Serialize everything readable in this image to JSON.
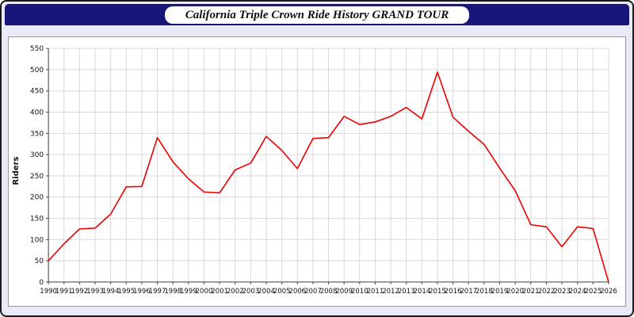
{
  "title": "California Triple Crown Ride History GRAND TOUR",
  "colors": {
    "header_bg": "#17177a",
    "page_bg": "#e9e9f7",
    "line": "#ee0000",
    "grid": "#d9d9d9"
  },
  "chart_data": {
    "type": "line",
    "title": "California Triple Crown Ride History GRAND TOUR",
    "xlabel": "",
    "ylabel": "Riders",
    "ylim": [
      0,
      550
    ],
    "ytick_step": 50,
    "grid": true,
    "legend": "none",
    "x": [
      1990,
      1991,
      1992,
      1993,
      1994,
      1995,
      1996,
      1997,
      1998,
      1999,
      2000,
      2001,
      2002,
      2003,
      2004,
      2005,
      2006,
      2007,
      2008,
      2009,
      2010,
      2011,
      2012,
      2013,
      2014,
      2015,
      2016,
      2017,
      2018,
      2019,
      2020,
      2021,
      2022,
      2023,
      2024,
      2025,
      2026
    ],
    "values": [
      50,
      90,
      125,
      127,
      160,
      224,
      225,
      340,
      283,
      243,
      212,
      210,
      264,
      280,
      343,
      310,
      267,
      338,
      340,
      390,
      371,
      377,
      390,
      411,
      384,
      494,
      388,
      355,
      324,
      268,
      215,
      135,
      130,
      83,
      130,
      126,
      0
    ]
  }
}
